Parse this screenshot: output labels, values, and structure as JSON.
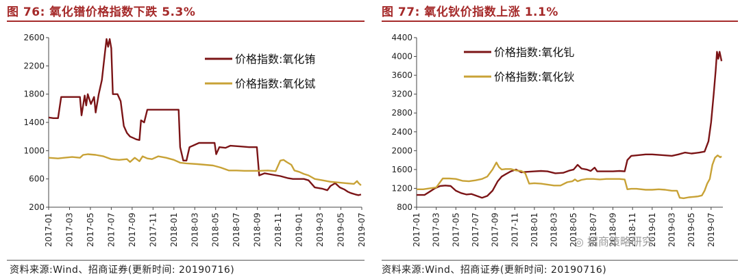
{
  "left": {
    "title": "图 76:  氧化镨价格指数下跌 5.3%",
    "source": "资料来源:Wind、招商证券(更新时间: 20190716)"
  },
  "right": {
    "title": "图 77:  氧化钬价指数上涨 1.1%",
    "source": "资料来源:Wind、招商证券(更新时间: 20190716)"
  },
  "watermark": "招商策略研究",
  "chart_data": [
    {
      "type": "line",
      "x_labels": [
        "2017-01",
        "2017-03",
        "2017-05",
        "2017-07",
        "2017-09",
        "2017-11",
        "2018-01",
        "2018-03",
        "2018-05",
        "2018-07",
        "2018-09",
        "2018-11",
        "2019-01",
        "2019-03",
        "2019-05",
        "2019-07"
      ],
      "ylim": [
        200,
        2600
      ],
      "yticks": [
        200,
        600,
        1000,
        1400,
        1800,
        2200,
        2600
      ],
      "legend_position": "top-right",
      "series": [
        {
          "name": "价格指数:氧化铕",
          "color": "#7b1416",
          "points": [
            [
              0,
              1470
            ],
            [
              0.3,
              1460
            ],
            [
              0.6,
              1460
            ],
            [
              0.8,
              1760
            ],
            [
              1.0,
              1760
            ],
            [
              2.0,
              1760
            ],
            [
              2.1,
              1500
            ],
            [
              2.3,
              1780
            ],
            [
              2.4,
              1640
            ],
            [
              2.5,
              1800
            ],
            [
              2.7,
              1660
            ],
            [
              2.9,
              1760
            ],
            [
              3.0,
              1540
            ],
            [
              3.2,
              1800
            ],
            [
              3.4,
              2000
            ],
            [
              3.5,
              2200
            ],
            [
              3.6,
              2400
            ],
            [
              3.7,
              2580
            ],
            [
              3.8,
              2470
            ],
            [
              3.9,
              2580
            ],
            [
              4.0,
              2450
            ],
            [
              4.1,
              1800
            ],
            [
              4.4,
              1800
            ],
            [
              4.6,
              1700
            ],
            [
              4.8,
              1350
            ],
            [
              5.0,
              1250
            ],
            [
              5.2,
              1200
            ],
            [
              5.4,
              1180
            ],
            [
              5.6,
              1160
            ],
            [
              5.8,
              1150
            ],
            [
              5.9,
              1430
            ],
            [
              6.1,
              1400
            ],
            [
              6.3,
              1580
            ],
            [
              7.0,
              1580
            ],
            [
              8.3,
              1580
            ],
            [
              8.4,
              1050
            ],
            [
              8.6,
              860
            ],
            [
              8.8,
              860
            ],
            [
              9.0,
              1050
            ],
            [
              9.3,
              1080
            ],
            [
              9.6,
              1110
            ],
            [
              10.0,
              1110
            ],
            [
              10.6,
              1110
            ],
            [
              10.7,
              950
            ],
            [
              10.9,
              1050
            ],
            [
              11.3,
              1040
            ],
            [
              11.6,
              1070
            ],
            [
              12.2,
              1060
            ],
            [
              12.8,
              1050
            ],
            [
              13.3,
              1050
            ],
            [
              13.45,
              650
            ],
            [
              13.8,
              680
            ],
            [
              14.3,
              660
            ],
            [
              14.8,
              640
            ],
            [
              15.3,
              610
            ],
            [
              15.6,
              600
            ],
            [
              16.3,
              600
            ],
            [
              16.6,
              580
            ],
            [
              17.0,
              480
            ],
            [
              17.5,
              460
            ],
            [
              17.8,
              440
            ],
            [
              18.0,
              500
            ],
            [
              18.3,
              540
            ],
            [
              18.6,
              480
            ],
            [
              18.9,
              450
            ],
            [
              19.1,
              420
            ],
            [
              19.3,
              400
            ],
            [
              19.6,
              380
            ],
            [
              19.8,
              370
            ],
            [
              19.95,
              380
            ]
          ]
        },
        {
          "name": "价格指数:氧化铽",
          "color": "#c8a236",
          "points": [
            [
              0,
              900
            ],
            [
              0.6,
              890
            ],
            [
              1.0,
              900
            ],
            [
              1.5,
              910
            ],
            [
              2.0,
              900
            ],
            [
              2.2,
              940
            ],
            [
              2.5,
              950
            ],
            [
              3.0,
              940
            ],
            [
              3.5,
              920
            ],
            [
              4.0,
              880
            ],
            [
              4.5,
              870
            ],
            [
              5.0,
              880
            ],
            [
              5.2,
              840
            ],
            [
              5.5,
              900
            ],
            [
              5.8,
              850
            ],
            [
              6.0,
              920
            ],
            [
              6.3,
              890
            ],
            [
              6.6,
              880
            ],
            [
              7.0,
              920
            ],
            [
              7.5,
              900
            ],
            [
              8.0,
              870
            ],
            [
              8.4,
              830
            ],
            [
              8.8,
              820
            ],
            [
              9.5,
              810
            ],
            [
              10.0,
              800
            ],
            [
              10.5,
              790
            ],
            [
              11.0,
              760
            ],
            [
              11.5,
              720
            ],
            [
              12.0,
              720
            ],
            [
              12.5,
              715
            ],
            [
              13.5,
              715
            ],
            [
              14.0,
              720
            ],
            [
              14.5,
              710
            ],
            [
              14.8,
              860
            ],
            [
              15.0,
              870
            ],
            [
              15.2,
              840
            ],
            [
              15.5,
              800
            ],
            [
              15.7,
              720
            ],
            [
              16.0,
              700
            ],
            [
              16.3,
              670
            ],
            [
              16.6,
              650
            ],
            [
              17.0,
              600
            ],
            [
              17.5,
              580
            ],
            [
              18.0,
              560
            ],
            [
              18.5,
              550
            ],
            [
              19.0,
              540
            ],
            [
              19.5,
              530
            ],
            [
              19.7,
              570
            ],
            [
              19.8,
              540
            ],
            [
              19.95,
              510
            ]
          ]
        }
      ]
    },
    {
      "type": "line",
      "x_labels": [
        "2017-01",
        "2017-03",
        "2017-05",
        "2017-07",
        "2017-09",
        "2017-11",
        "2018-01",
        "2018-03",
        "2018-05",
        "2018-07",
        "2018-09",
        "2018-11",
        "2019-01",
        "2019-03",
        "2019-05",
        "2019-07"
      ],
      "ylim": [
        800,
        4400
      ],
      "yticks": [
        800,
        1200,
        1600,
        2000,
        2400,
        2800,
        3200,
        3600,
        4000,
        4400
      ],
      "legend_position": "top-right",
      "series": [
        {
          "name": "价格指数:氧化钆",
          "color": "#7b1416",
          "points": [
            [
              0,
              1060
            ],
            [
              0.6,
              1060
            ],
            [
              1.0,
              1130
            ],
            [
              1.4,
              1200
            ],
            [
              1.8,
              1250
            ],
            [
              2.2,
              1260
            ],
            [
              2.6,
              1250
            ],
            [
              3.0,
              1150
            ],
            [
              3.4,
              1100
            ],
            [
              3.8,
              1070
            ],
            [
              4.2,
              1080
            ],
            [
              4.6,
              1040
            ],
            [
              5.0,
              1000
            ],
            [
              5.4,
              1040
            ],
            [
              5.8,
              1150
            ],
            [
              6.2,
              1350
            ],
            [
              6.5,
              1450
            ],
            [
              6.8,
              1500
            ],
            [
              7.2,
              1560
            ],
            [
              7.6,
              1600
            ],
            [
              8.0,
              1540
            ],
            [
              8.4,
              1550
            ],
            [
              9.0,
              1560
            ],
            [
              9.5,
              1570
            ],
            [
              10.0,
              1560
            ],
            [
              10.6,
              1520
            ],
            [
              11.2,
              1530
            ],
            [
              11.7,
              1580
            ],
            [
              12.0,
              1600
            ],
            [
              12.3,
              1700
            ],
            [
              12.6,
              1620
            ],
            [
              13.0,
              1600
            ],
            [
              13.3,
              1570
            ],
            [
              13.6,
              1640
            ],
            [
              13.8,
              1560
            ],
            [
              14.0,
              1560
            ],
            [
              15.0,
              1560
            ],
            [
              15.5,
              1570
            ],
            [
              15.9,
              1560
            ],
            [
              16.1,
              1800
            ],
            [
              16.4,
              1890
            ],
            [
              16.8,
              1900
            ],
            [
              17.5,
              1920
            ],
            [
              18.0,
              1920
            ],
            [
              19.0,
              1900
            ],
            [
              19.5,
              1890
            ],
            [
              20.0,
              1920
            ],
            [
              20.5,
              1960
            ],
            [
              21.0,
              1940
            ],
            [
              21.6,
              1960
            ],
            [
              22.0,
              1980
            ],
            [
              22.3,
              2200
            ],
            [
              22.5,
              2600
            ],
            [
              22.7,
              3200
            ],
            [
              22.85,
              3700
            ],
            [
              22.95,
              4100
            ],
            [
              23.05,
              3950
            ],
            [
              23.15,
              4100
            ],
            [
              23.3,
              3900
            ]
          ]
        },
        {
          "name": "价格指数:氧化钬",
          "color": "#c8a236",
          "points": [
            [
              0,
              1180
            ],
            [
              0.5,
              1180
            ],
            [
              1.0,
              1200
            ],
            [
              1.5,
              1220
            ],
            [
              2.0,
              1410
            ],
            [
              2.5,
              1410
            ],
            [
              3.0,
              1400
            ],
            [
              3.5,
              1360
            ],
            [
              4.0,
              1350
            ],
            [
              4.5,
              1370
            ],
            [
              5.0,
              1400
            ],
            [
              5.4,
              1450
            ],
            [
              5.8,
              1600
            ],
            [
              6.1,
              1750
            ],
            [
              6.3,
              1650
            ],
            [
              6.5,
              1600
            ],
            [
              6.8,
              1610
            ],
            [
              7.2,
              1610
            ],
            [
              7.6,
              1580
            ],
            [
              8.0,
              1570
            ],
            [
              8.3,
              1520
            ],
            [
              8.6,
              1300
            ],
            [
              9.0,
              1310
            ],
            [
              9.5,
              1300
            ],
            [
              10.0,
              1280
            ],
            [
              10.5,
              1260
            ],
            [
              11.0,
              1260
            ],
            [
              11.5,
              1330
            ],
            [
              11.9,
              1350
            ],
            [
              12.1,
              1390
            ],
            [
              12.3,
              1350
            ],
            [
              12.6,
              1380
            ],
            [
              13.0,
              1400
            ],
            [
              13.5,
              1400
            ],
            [
              14.0,
              1390
            ],
            [
              14.5,
              1400
            ],
            [
              15.0,
              1400
            ],
            [
              15.5,
              1400
            ],
            [
              15.9,
              1390
            ],
            [
              16.1,
              1180
            ],
            [
              16.4,
              1190
            ],
            [
              16.8,
              1190
            ],
            [
              17.5,
              1170
            ],
            [
              18.0,
              1170
            ],
            [
              18.5,
              1180
            ],
            [
              19.0,
              1170
            ],
            [
              19.5,
              1150
            ],
            [
              19.9,
              1150
            ],
            [
              20.1,
              1000
            ],
            [
              20.4,
              990
            ],
            [
              20.8,
              1010
            ],
            [
              21.2,
              1020
            ],
            [
              21.5,
              1030
            ],
            [
              21.8,
              1050
            ],
            [
              22.0,
              1150
            ],
            [
              22.2,
              1300
            ],
            [
              22.4,
              1400
            ],
            [
              22.6,
              1700
            ],
            [
              22.8,
              1850
            ],
            [
              23.0,
              1900
            ],
            [
              23.2,
              1860
            ],
            [
              23.3,
              1880
            ]
          ]
        }
      ]
    }
  ]
}
